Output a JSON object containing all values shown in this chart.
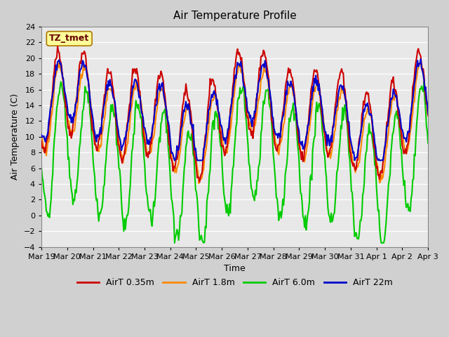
{
  "title": "Air Temperature Profile",
  "xlabel": "Time",
  "ylabel": "Air Temperature (C)",
  "ylim": [
    -4,
    24
  ],
  "yticks": [
    -4,
    -2,
    0,
    2,
    4,
    6,
    8,
    10,
    12,
    14,
    16,
    18,
    20,
    22,
    24
  ],
  "xtick_labels": [
    "Mar 19",
    "Mar 20",
    "Mar 21",
    "Mar 22",
    "Mar 23",
    "Mar 24",
    "Mar 25",
    "Mar 26",
    "Mar 27",
    "Mar 28",
    "Mar 29",
    "Mar 30",
    "Mar 31",
    "Apr 1",
    "Apr 2",
    "Apr 3"
  ],
  "legend_labels": [
    "AirT 0.35m",
    "AirT 1.8m",
    "AirT 6.0m",
    "AirT 22m"
  ],
  "colors": [
    "#cc0000",
    "#ff8800",
    "#00cc00",
    "#0000cc"
  ],
  "annotation_text": "TZ_tmet",
  "annotation_box_color": "#ffff99",
  "annotation_text_color": "#660000",
  "linewidth": 1.5,
  "n_points": 480,
  "days": 15
}
